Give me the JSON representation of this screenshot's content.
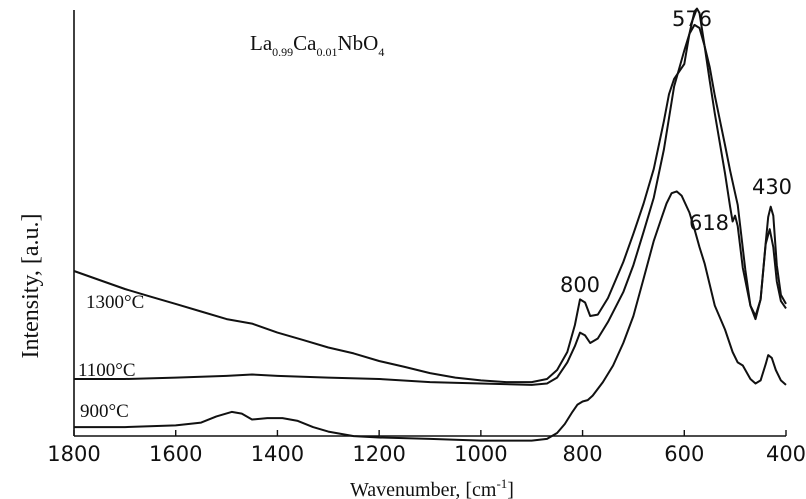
{
  "chart_data": {
    "type": "line",
    "title_parts": {
      "el1": "La",
      "sub1": "0.99",
      "el2": "Ca",
      "sub2": "0.01",
      "el3": "NbO",
      "sub3": "4"
    },
    "xlabel": "Wavenumber, [cm",
    "xlabel_sup": "-1",
    "xlabel_end": "]",
    "ylabel": "Intensity, [a.u.]",
    "xlim": [
      1800,
      400
    ],
    "x_ticks": [
      "1800",
      "1600",
      "1400",
      "1200",
      "1000",
      "800",
      "600",
      "400"
    ],
    "y_ticks_shown": false,
    "grid": false,
    "annotations": [
      "800",
      "576",
      "430",
      "618"
    ],
    "series": [
      {
        "name": "1300°C",
        "points": [
          [
            1800,
            0.3
          ],
          [
            1750,
            0.28
          ],
          [
            1700,
            0.26
          ],
          [
            1650,
            0.243
          ],
          [
            1600,
            0.227
          ],
          [
            1550,
            0.21
          ],
          [
            1500,
            0.193
          ],
          [
            1450,
            0.183
          ],
          [
            1400,
            0.163
          ],
          [
            1350,
            0.147
          ],
          [
            1300,
            0.13
          ],
          [
            1250,
            0.117
          ],
          [
            1200,
            0.1
          ],
          [
            1150,
            0.087
          ],
          [
            1100,
            0.073
          ],
          [
            1050,
            0.063
          ],
          [
            1000,
            0.057
          ],
          [
            950,
            0.053
          ],
          [
            900,
            0.053
          ],
          [
            870,
            0.06
          ],
          [
            850,
            0.08
          ],
          [
            830,
            0.12
          ],
          [
            815,
            0.18
          ],
          [
            805,
            0.237
          ],
          [
            795,
            0.23
          ],
          [
            785,
            0.2
          ],
          [
            770,
            0.203
          ],
          [
            750,
            0.24
          ],
          [
            720,
            0.32
          ],
          [
            700,
            0.383
          ],
          [
            680,
            0.45
          ],
          [
            660,
            0.527
          ],
          [
            640,
            0.633
          ],
          [
            630,
            0.693
          ],
          [
            620,
            0.727
          ],
          [
            600,
            0.76
          ],
          [
            590,
            0.827
          ],
          [
            580,
            0.877
          ],
          [
            575,
            0.883
          ],
          [
            570,
            0.873
          ],
          [
            560,
            0.8
          ],
          [
            550,
            0.723
          ],
          [
            540,
            0.65
          ],
          [
            520,
            0.517
          ],
          [
            510,
            0.443
          ],
          [
            505,
            0.41
          ],
          [
            500,
            0.423
          ],
          [
            495,
            0.4
          ],
          [
            485,
            0.307
          ],
          [
            470,
            0.223
          ],
          [
            460,
            0.2
          ],
          [
            450,
            0.237
          ],
          [
            440,
            0.363
          ],
          [
            435,
            0.42
          ],
          [
            430,
            0.443
          ],
          [
            425,
            0.423
          ],
          [
            418,
            0.313
          ],
          [
            410,
            0.247
          ],
          [
            400,
            0.227
          ]
        ]
      },
      {
        "name": "1100°C",
        "points": [
          [
            1800,
            0.06
          ],
          [
            1700,
            0.06
          ],
          [
            1600,
            0.063
          ],
          [
            1500,
            0.067
          ],
          [
            1450,
            0.07
          ],
          [
            1400,
            0.067
          ],
          [
            1300,
            0.063
          ],
          [
            1200,
            0.06
          ],
          [
            1100,
            0.053
          ],
          [
            1000,
            0.05
          ],
          [
            900,
            0.047
          ],
          [
            870,
            0.05
          ],
          [
            850,
            0.063
          ],
          [
            830,
            0.097
          ],
          [
            815,
            0.133
          ],
          [
            805,
            0.163
          ],
          [
            795,
            0.157
          ],
          [
            785,
            0.14
          ],
          [
            770,
            0.15
          ],
          [
            750,
            0.187
          ],
          [
            720,
            0.253
          ],
          [
            700,
            0.313
          ],
          [
            680,
            0.387
          ],
          [
            660,
            0.463
          ],
          [
            640,
            0.57
          ],
          [
            630,
            0.64
          ],
          [
            620,
            0.71
          ],
          [
            610,
            0.75
          ],
          [
            600,
            0.79
          ],
          [
            590,
            0.827
          ],
          [
            580,
            0.847
          ],
          [
            570,
            0.84
          ],
          [
            560,
            0.8
          ],
          [
            550,
            0.753
          ],
          [
            540,
            0.69
          ],
          [
            520,
            0.58
          ],
          [
            510,
            0.523
          ],
          [
            500,
            0.473
          ],
          [
            495,
            0.447
          ],
          [
            490,
            0.4
          ],
          [
            480,
            0.303
          ],
          [
            470,
            0.223
          ],
          [
            460,
            0.193
          ],
          [
            450,
            0.237
          ],
          [
            440,
            0.36
          ],
          [
            432,
            0.393
          ],
          [
            425,
            0.353
          ],
          [
            418,
            0.277
          ],
          [
            410,
            0.233
          ],
          [
            400,
            0.217
          ]
        ]
      },
      {
        "name": "900°C",
        "points": [
          [
            1800,
            -0.047
          ],
          [
            1700,
            -0.047
          ],
          [
            1600,
            -0.043
          ],
          [
            1550,
            -0.037
          ],
          [
            1520,
            -0.023
          ],
          [
            1490,
            -0.013
          ],
          [
            1470,
            -0.017
          ],
          [
            1450,
            -0.03
          ],
          [
            1420,
            -0.027
          ],
          [
            1390,
            -0.027
          ],
          [
            1360,
            -0.033
          ],
          [
            1330,
            -0.047
          ],
          [
            1300,
            -0.057
          ],
          [
            1250,
            -0.067
          ],
          [
            1200,
            -0.07
          ],
          [
            1100,
            -0.073
          ],
          [
            1000,
            -0.077
          ],
          [
            950,
            -0.077
          ],
          [
            900,
            -0.077
          ],
          [
            870,
            -0.073
          ],
          [
            850,
            -0.06
          ],
          [
            835,
            -0.04
          ],
          [
            820,
            -0.013
          ],
          [
            810,
            0.003
          ],
          [
            800,
            0.01
          ],
          [
            790,
            0.013
          ],
          [
            780,
            0.023
          ],
          [
            760,
            0.053
          ],
          [
            740,
            0.09
          ],
          [
            720,
            0.14
          ],
          [
            700,
            0.2
          ],
          [
            680,
            0.283
          ],
          [
            660,
            0.367
          ],
          [
            645,
            0.417
          ],
          [
            635,
            0.45
          ],
          [
            625,
            0.473
          ],
          [
            615,
            0.477
          ],
          [
            605,
            0.467
          ],
          [
            590,
            0.43
          ],
          [
            580,
            0.393
          ],
          [
            570,
            0.353
          ],
          [
            560,
            0.317
          ],
          [
            550,
            0.27
          ],
          [
            540,
            0.223
          ],
          [
            520,
            0.17
          ],
          [
            505,
            0.12
          ],
          [
            495,
            0.097
          ],
          [
            485,
            0.09
          ],
          [
            470,
            0.06
          ],
          [
            460,
            0.05
          ],
          [
            450,
            0.057
          ],
          [
            440,
            0.093
          ],
          [
            435,
            0.113
          ],
          [
            428,
            0.107
          ],
          [
            420,
            0.08
          ],
          [
            410,
            0.057
          ],
          [
            400,
            0.047
          ]
        ]
      }
    ]
  }
}
